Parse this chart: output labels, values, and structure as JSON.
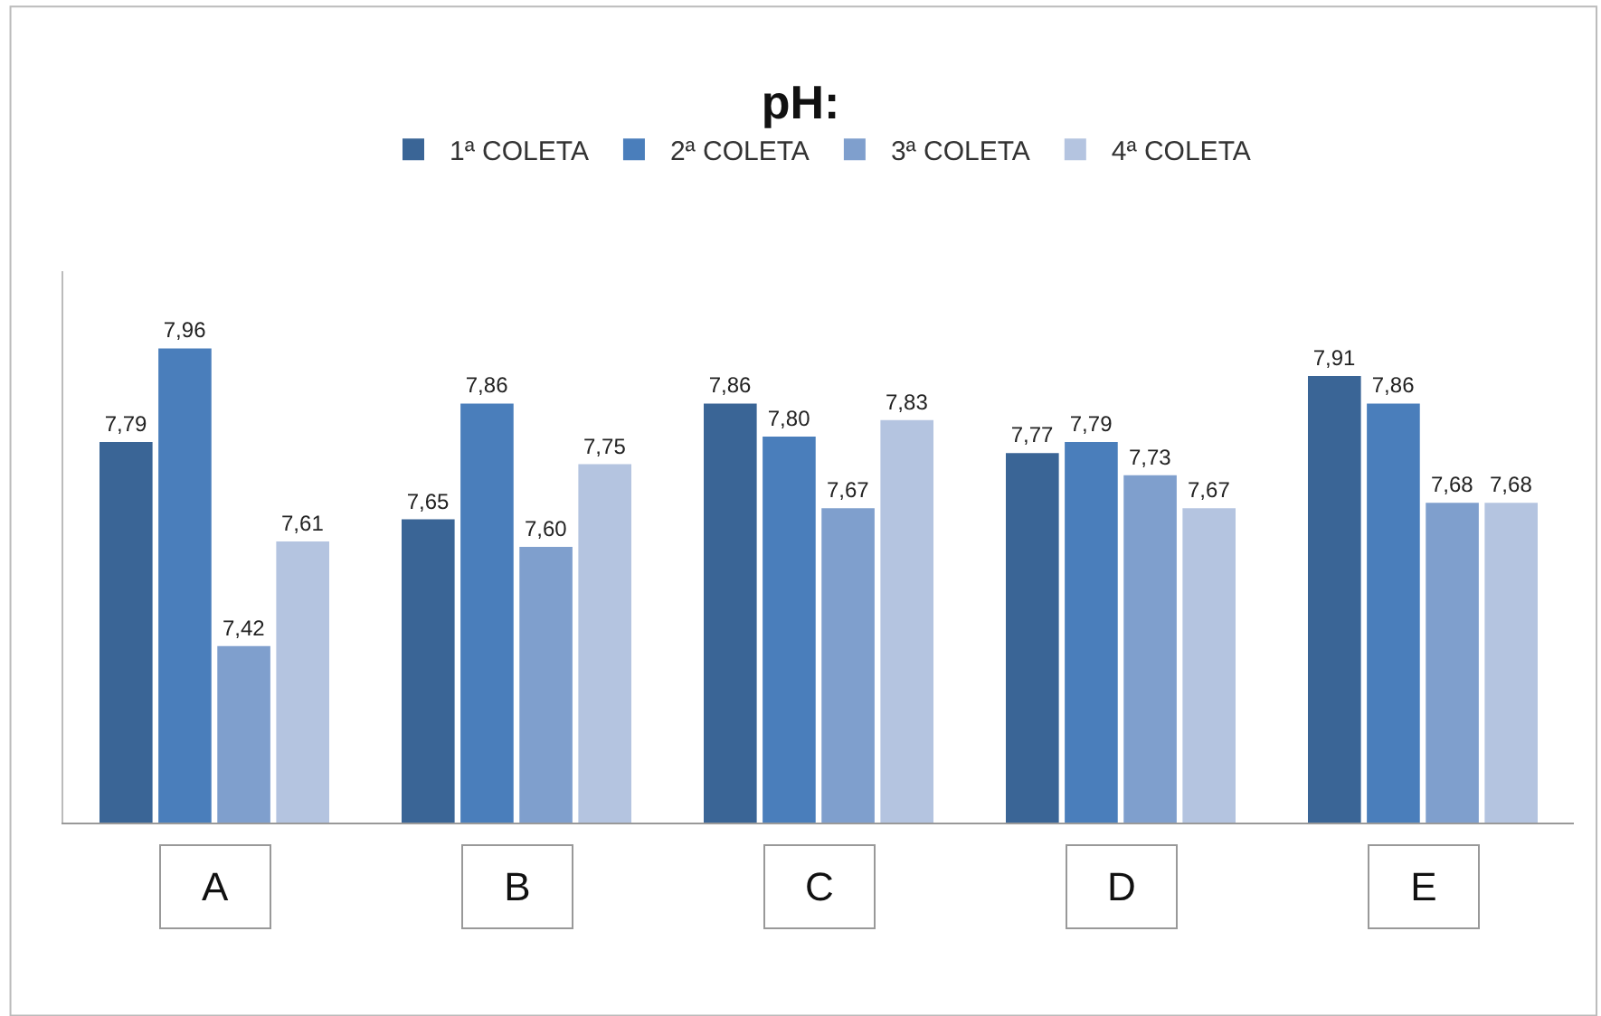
{
  "chart_data": {
    "type": "bar",
    "title": "pH:",
    "categories": [
      "A",
      "B",
      "C",
      "D",
      "E"
    ],
    "series": [
      {
        "name": "1ª COLETA",
        "color": "#3a6596",
        "values": [
          7.79,
          7.65,
          7.86,
          7.77,
          7.91
        ],
        "value_labels": [
          "7,79",
          "7,65",
          "7,86",
          "7,77",
          "7,91"
        ]
      },
      {
        "name": "2ª COLETA",
        "color": "#4a7ebb",
        "values": [
          7.96,
          7.86,
          7.8,
          7.79,
          7.86
        ],
        "value_labels": [
          "7,96",
          "7,86",
          "7,80",
          "7,79",
          "7,86"
        ]
      },
      {
        "name": "3ª COLETA",
        "color": "#7f9fcd",
        "values": [
          7.42,
          7.6,
          7.67,
          7.73,
          7.68
        ],
        "value_labels": [
          "7,42",
          "7,60",
          "7,67",
          "7,73",
          "7,68"
        ]
      },
      {
        "name": "4ª COLETA",
        "color": "#b4c4e0",
        "values": [
          7.61,
          7.75,
          7.83,
          7.67,
          7.68
        ],
        "value_labels": [
          "7,61",
          "7,75",
          "7,83",
          "7,67",
          "7,68"
        ]
      }
    ],
    "ylim": [
      7.1,
      8.1
    ],
    "legend": "top"
  }
}
